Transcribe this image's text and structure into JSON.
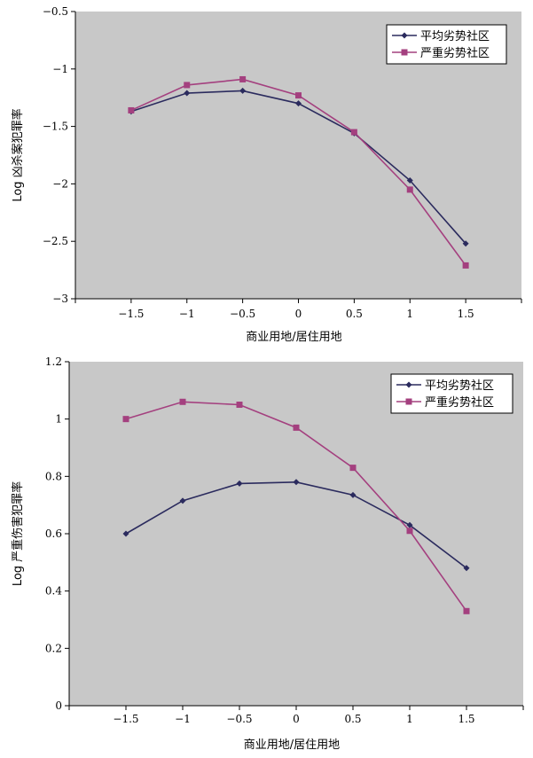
{
  "chart_data": [
    {
      "type": "line",
      "xlabel": "商业用地/居住用地",
      "ylabel": "Log 凶杀案犯罪率",
      "xlim": [
        -2,
        2
      ],
      "ylim": [
        -3,
        -0.5
      ],
      "x_ticks": [
        -1.5,
        -1,
        -0.5,
        0,
        0.5,
        1,
        1.5
      ],
      "y_ticks": [
        -3,
        -2.5,
        -2,
        -1.5,
        -1,
        -0.5
      ],
      "x_tick_labels": [
        "−1.5",
        "−1",
        "−0.5",
        "0",
        "0.5",
        "1",
        "1.5"
      ],
      "y_tick_labels": [
        "−3",
        "−2.5",
        "−2",
        "−1.5",
        "−1",
        "−0.5"
      ],
      "x": [
        -1.5,
        -1,
        -0.5,
        0,
        0.5,
        1,
        1.5
      ],
      "grid": false,
      "legend_position": "top-right",
      "series": [
        {
          "name": "平均劣势社区",
          "color": "#2b2b5e",
          "marker": "diamond",
          "values": [
            -1.37,
            -1.21,
            -1.19,
            -1.3,
            -1.56,
            -1.97,
            -2.52
          ]
        },
        {
          "name": "严重劣势社区",
          "color": "#a4407f",
          "marker": "square",
          "values": [
            -1.36,
            -1.14,
            -1.09,
            -1.23,
            -1.55,
            -2.05,
            -2.71
          ]
        }
      ]
    },
    {
      "type": "line",
      "xlabel": "商业用地/居住用地",
      "ylabel": "Log 严重伤害犯罪率",
      "xlim": [
        -2,
        2
      ],
      "ylim": [
        0,
        1.2
      ],
      "x_ticks": [
        -1.5,
        -1,
        -0.5,
        0,
        0.5,
        1,
        1.5
      ],
      "y_ticks": [
        0,
        0.2,
        0.4,
        0.6,
        0.8,
        1,
        1.2
      ],
      "x_tick_labels": [
        "−1.5",
        "−1",
        "−0.5",
        "0",
        "0.5",
        "1",
        "1.5"
      ],
      "y_tick_labels": [
        "0",
        "0.2",
        "0.4",
        "0.6",
        "0.8",
        "1",
        "1.2"
      ],
      "x": [
        -1.5,
        -1,
        -0.5,
        0,
        0.5,
        1,
        1.5
      ],
      "grid": false,
      "legend_position": "top-right",
      "series": [
        {
          "name": "平均劣势社区",
          "color": "#2b2b5e",
          "marker": "diamond",
          "values": [
            0.6,
            0.715,
            0.775,
            0.78,
            0.735,
            0.63,
            0.48
          ]
        },
        {
          "name": "严重劣势社区",
          "color": "#a4407f",
          "marker": "square",
          "values": [
            1.0,
            1.06,
            1.05,
            0.97,
            0.83,
            0.61,
            0.33
          ]
        }
      ]
    }
  ]
}
